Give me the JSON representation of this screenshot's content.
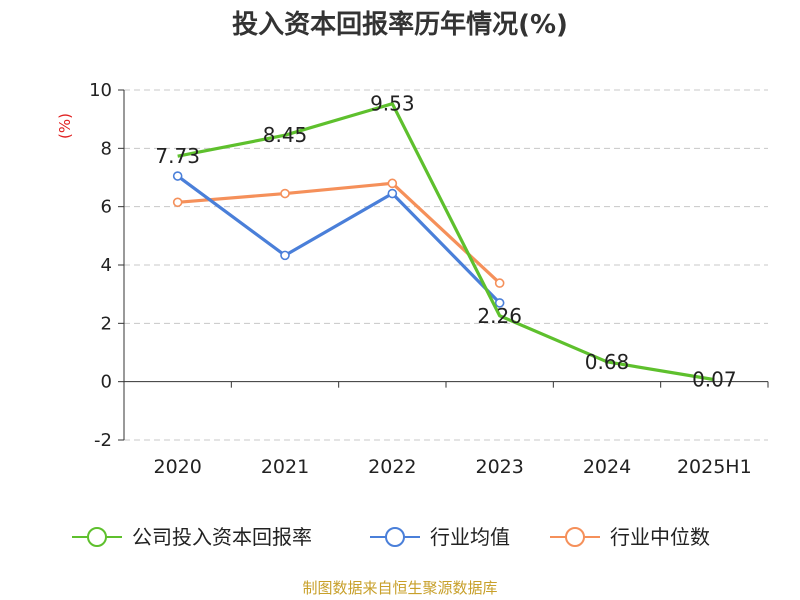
{
  "chart_data": {
    "type": "line",
    "title": "投入资本回报率历年情况(%)",
    "ylabel": "(%)",
    "categories": [
      "2020",
      "2021",
      "2022",
      "2023",
      "2024",
      "2025H1"
    ],
    "ylim": [
      -2,
      10
    ],
    "yticks": [
      "10",
      "8",
      "6",
      "4",
      "2",
      "0",
      "-2"
    ],
    "grid": true,
    "legend_position": "bottom",
    "series": [
      {
        "name": "公司投入资本回报率",
        "color": "#5ec02d",
        "values": [
          7.73,
          8.45,
          9.53,
          2.26,
          0.68,
          0.07
        ],
        "labels": [
          "7.73",
          "8.45",
          "9.53",
          "2.26",
          "0.68",
          "0.07"
        ]
      },
      {
        "name": "行业均值",
        "color": "#4a7fd9",
        "values": [
          7.05,
          4.33,
          6.45,
          2.7,
          null,
          null
        ]
      },
      {
        "name": "行业中位数",
        "color": "#f5905a",
        "values": [
          6.15,
          6.45,
          6.8,
          3.38,
          null,
          null
        ]
      }
    ]
  },
  "source": "制图数据来自恒生聚源数据库"
}
